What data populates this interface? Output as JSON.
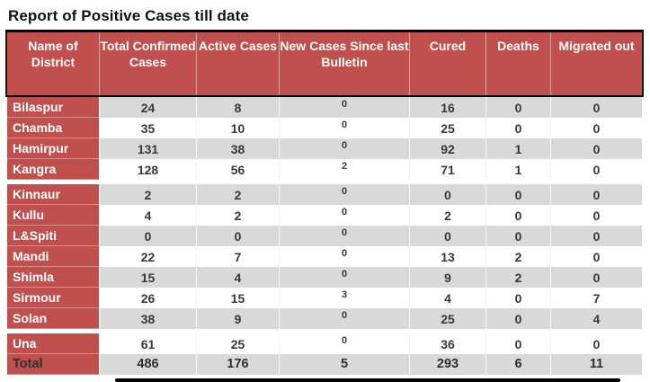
{
  "page": {
    "title": "Report of Positive Cases till date"
  },
  "colors": {
    "header_red": "#C0504D",
    "stripe_gray": "#D9D9D9",
    "row_white": "#FFFFFF",
    "header_text": "#FFFFFF",
    "data_text": "#383838",
    "border_black": "#000000"
  },
  "table": {
    "columns": [
      {
        "label": "Name of District"
      },
      {
        "label": "Total Confirmed Cases"
      },
      {
        "label": "Active Cases"
      },
      {
        "label": "New Cases Since last Bulletin"
      },
      {
        "label": "Cured"
      },
      {
        "label": "Deaths"
      },
      {
        "label": "Migrated out"
      }
    ],
    "rows": [
      {
        "cells": [
          "Bilaspur",
          "24",
          "8",
          "0",
          "16",
          "0",
          "0"
        ],
        "stripe": "gray",
        "gap_before": false,
        "is_total": false
      },
      {
        "cells": [
          "Chamba",
          "35",
          "10",
          "0",
          "25",
          "0",
          "0"
        ],
        "stripe": "white",
        "gap_before": false,
        "is_total": false
      },
      {
        "cells": [
          "Hamirpur",
          "131",
          "38",
          "0",
          "92",
          "1",
          "0"
        ],
        "stripe": "gray",
        "gap_before": false,
        "is_total": false
      },
      {
        "cells": [
          "Kangra",
          "128",
          "56",
          "2",
          "71",
          "1",
          "0"
        ],
        "stripe": "white",
        "gap_before": false,
        "is_total": false
      },
      {
        "cells": [
          "Kinnaur",
          "2",
          "2",
          "0",
          "0",
          "0",
          "0"
        ],
        "stripe": "gray",
        "gap_before": true,
        "is_total": false
      },
      {
        "cells": [
          "Kullu",
          "4",
          "2",
          "0",
          "2",
          "0",
          "0"
        ],
        "stripe": "white",
        "gap_before": false,
        "is_total": false
      },
      {
        "cells": [
          "L&Spiti",
          "0",
          "0",
          "0",
          "0",
          "0",
          "0"
        ],
        "stripe": "gray",
        "gap_before": false,
        "is_total": false
      },
      {
        "cells": [
          "Mandi",
          "22",
          "7",
          "0",
          "13",
          "2",
          "0"
        ],
        "stripe": "white",
        "gap_before": false,
        "is_total": false
      },
      {
        "cells": [
          "Shimla",
          "15",
          "4",
          "0",
          "9",
          "2",
          "0"
        ],
        "stripe": "gray",
        "gap_before": false,
        "is_total": false
      },
      {
        "cells": [
          "Sirmour",
          "26",
          "15",
          "3",
          "4",
          "0",
          "7"
        ],
        "stripe": "white",
        "gap_before": false,
        "is_total": false
      },
      {
        "cells": [
          "Solan",
          "38",
          "9",
          "0",
          "25",
          "0",
          "4"
        ],
        "stripe": "gray",
        "gap_before": false,
        "is_total": false
      },
      {
        "cells": [
          "Una",
          "61",
          "25",
          "0",
          "36",
          "0",
          "0"
        ],
        "stripe": "white",
        "gap_before": true,
        "is_total": false
      },
      {
        "cells": [
          "Total",
          "486",
          "176",
          "5",
          "293",
          "6",
          "11"
        ],
        "stripe": "gray",
        "gap_before": false,
        "is_total": true
      }
    ]
  }
}
